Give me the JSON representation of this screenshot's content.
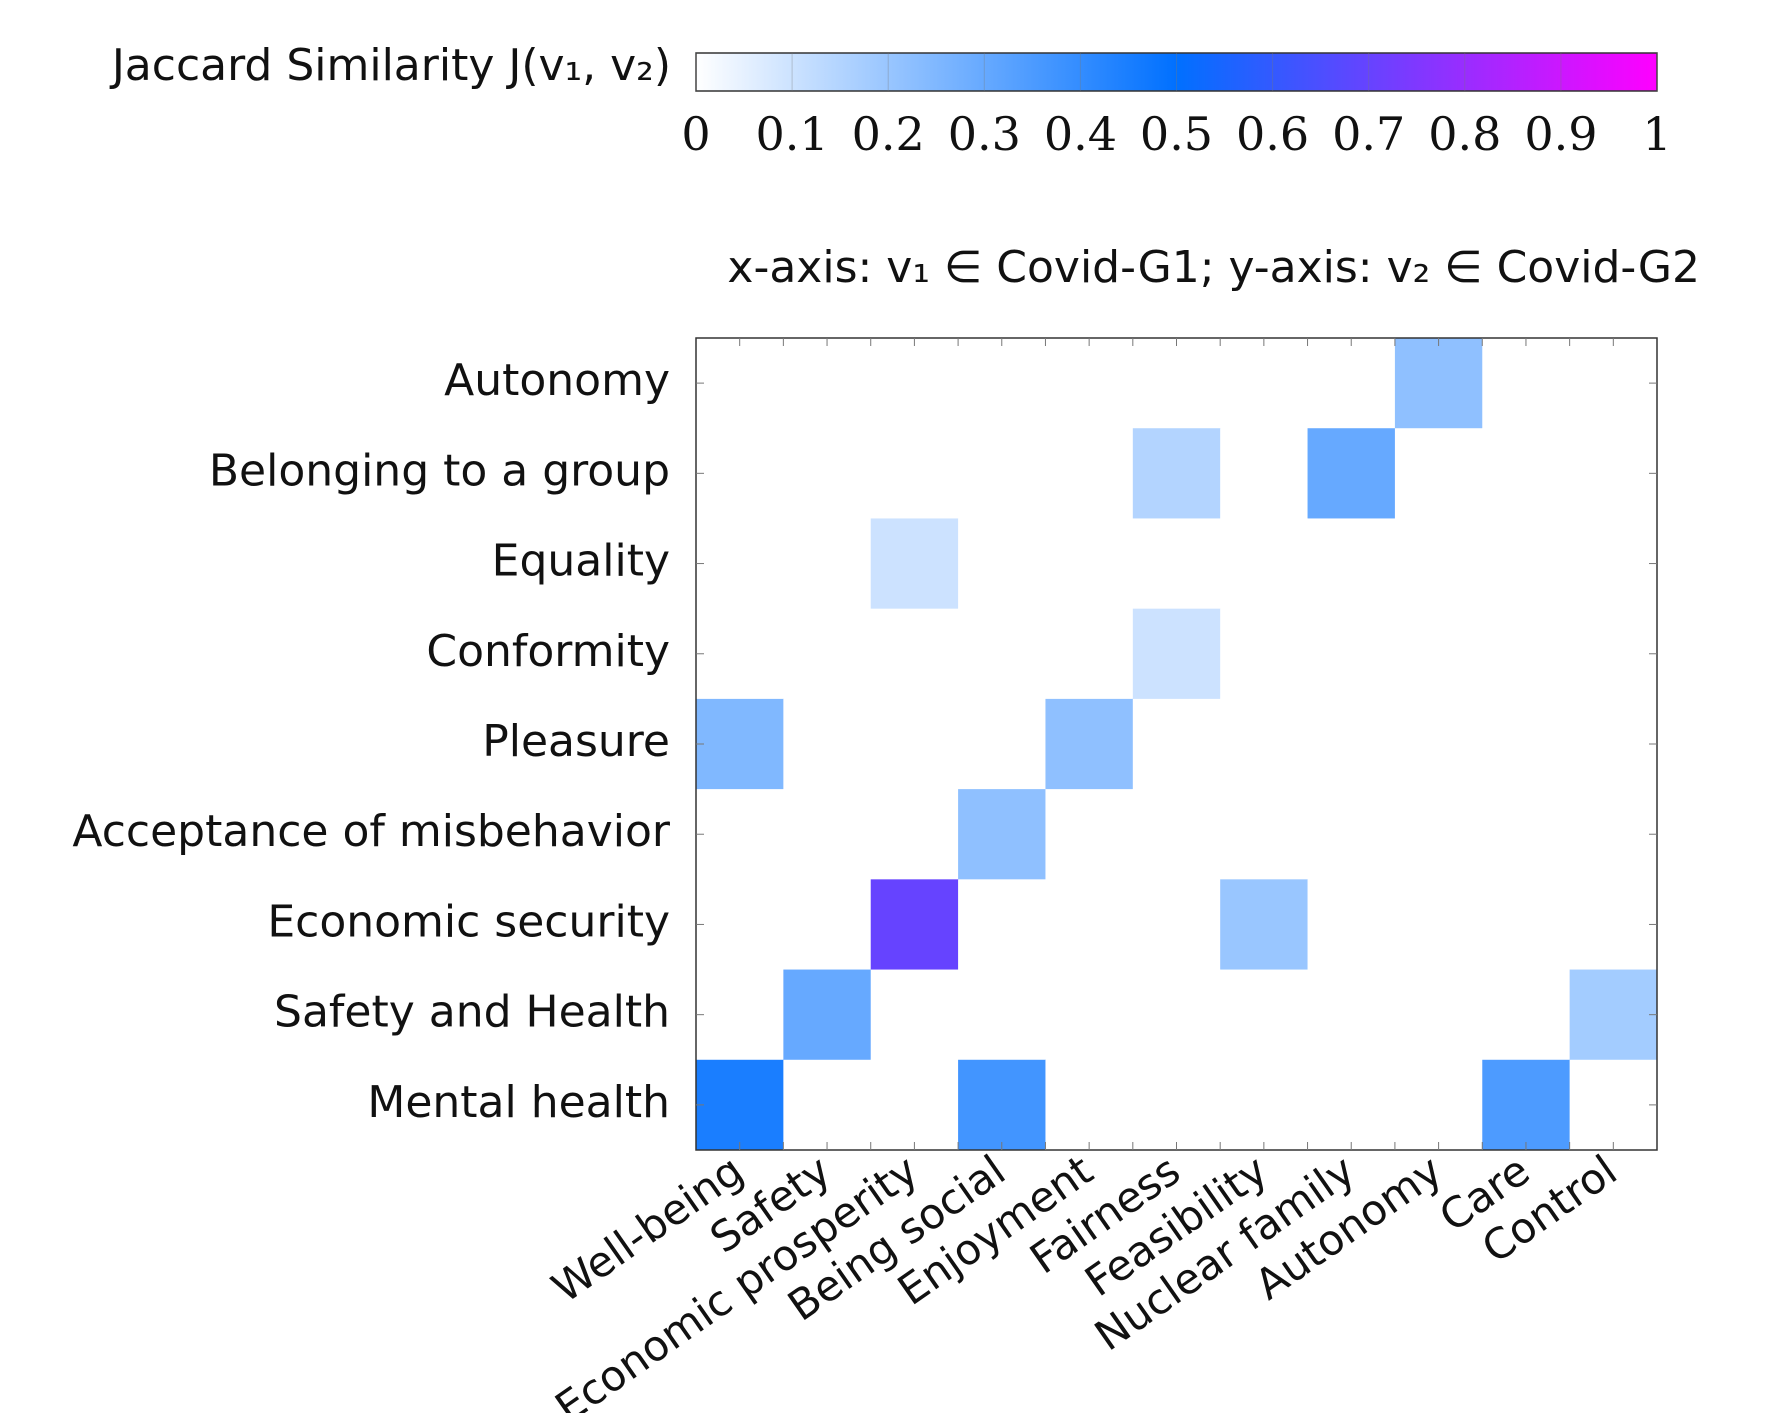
{
  "chart_data": {
    "type": "heatmap",
    "colorbar_label": "Jaccard Similarity J(v₁, v₂)",
    "title": "x-axis: v₁ ∈ Covid-G1; y-axis: v₂ ∈ Covid-G2",
    "x_categories": [
      "Well-being",
      "Safety",
      "Economic prosperity",
      "Being social",
      "Enjoyment",
      "Fairness",
      "Feasibility",
      "Nuclear family",
      "Autonomy",
      "Care",
      "Control"
    ],
    "y_categories": [
      "Autonomy",
      "Belonging to a group",
      "Equality",
      "Conformity",
      "Pleasure",
      "Acceptance of misbehavior",
      "Economic security",
      "Safety and Health",
      "Mental health"
    ],
    "values": [
      [
        0,
        0,
        0,
        0,
        0,
        0,
        0,
        0,
        0.22,
        0,
        0
      ],
      [
        0,
        0,
        0,
        0,
        0,
        0.15,
        0,
        0.3,
        0,
        0,
        0
      ],
      [
        0,
        0,
        0.1,
        0,
        0,
        0,
        0,
        0,
        0,
        0,
        0
      ],
      [
        0,
        0,
        0,
        0,
        0,
        0.1,
        0,
        0,
        0,
        0,
        0
      ],
      [
        0.25,
        0,
        0,
        0,
        0.22,
        0,
        0,
        0,
        0,
        0,
        0
      ],
      [
        0,
        0,
        0,
        0.22,
        0,
        0,
        0,
        0,
        0,
        0,
        0
      ],
      [
        0,
        0,
        0.7,
        0,
        0,
        0,
        0.2,
        0,
        0,
        0,
        0
      ],
      [
        0,
        0.3,
        0,
        0,
        0,
        0,
        0,
        0,
        0,
        0,
        0.18
      ],
      [
        0.45,
        0,
        0,
        0.37,
        0,
        0,
        0,
        0,
        0,
        0.35,
        0
      ]
    ],
    "colorscale": [
      [
        0,
        "#ffffff"
      ],
      [
        0.5,
        "#0070ff"
      ],
      [
        1,
        "#ff00ff"
      ]
    ],
    "clim": [
      0,
      1
    ],
    "cticks": [
      0,
      0.1,
      0.2,
      0.3,
      0.4,
      0.5,
      0.6,
      0.7,
      0.8,
      0.9,
      1
    ]
  }
}
